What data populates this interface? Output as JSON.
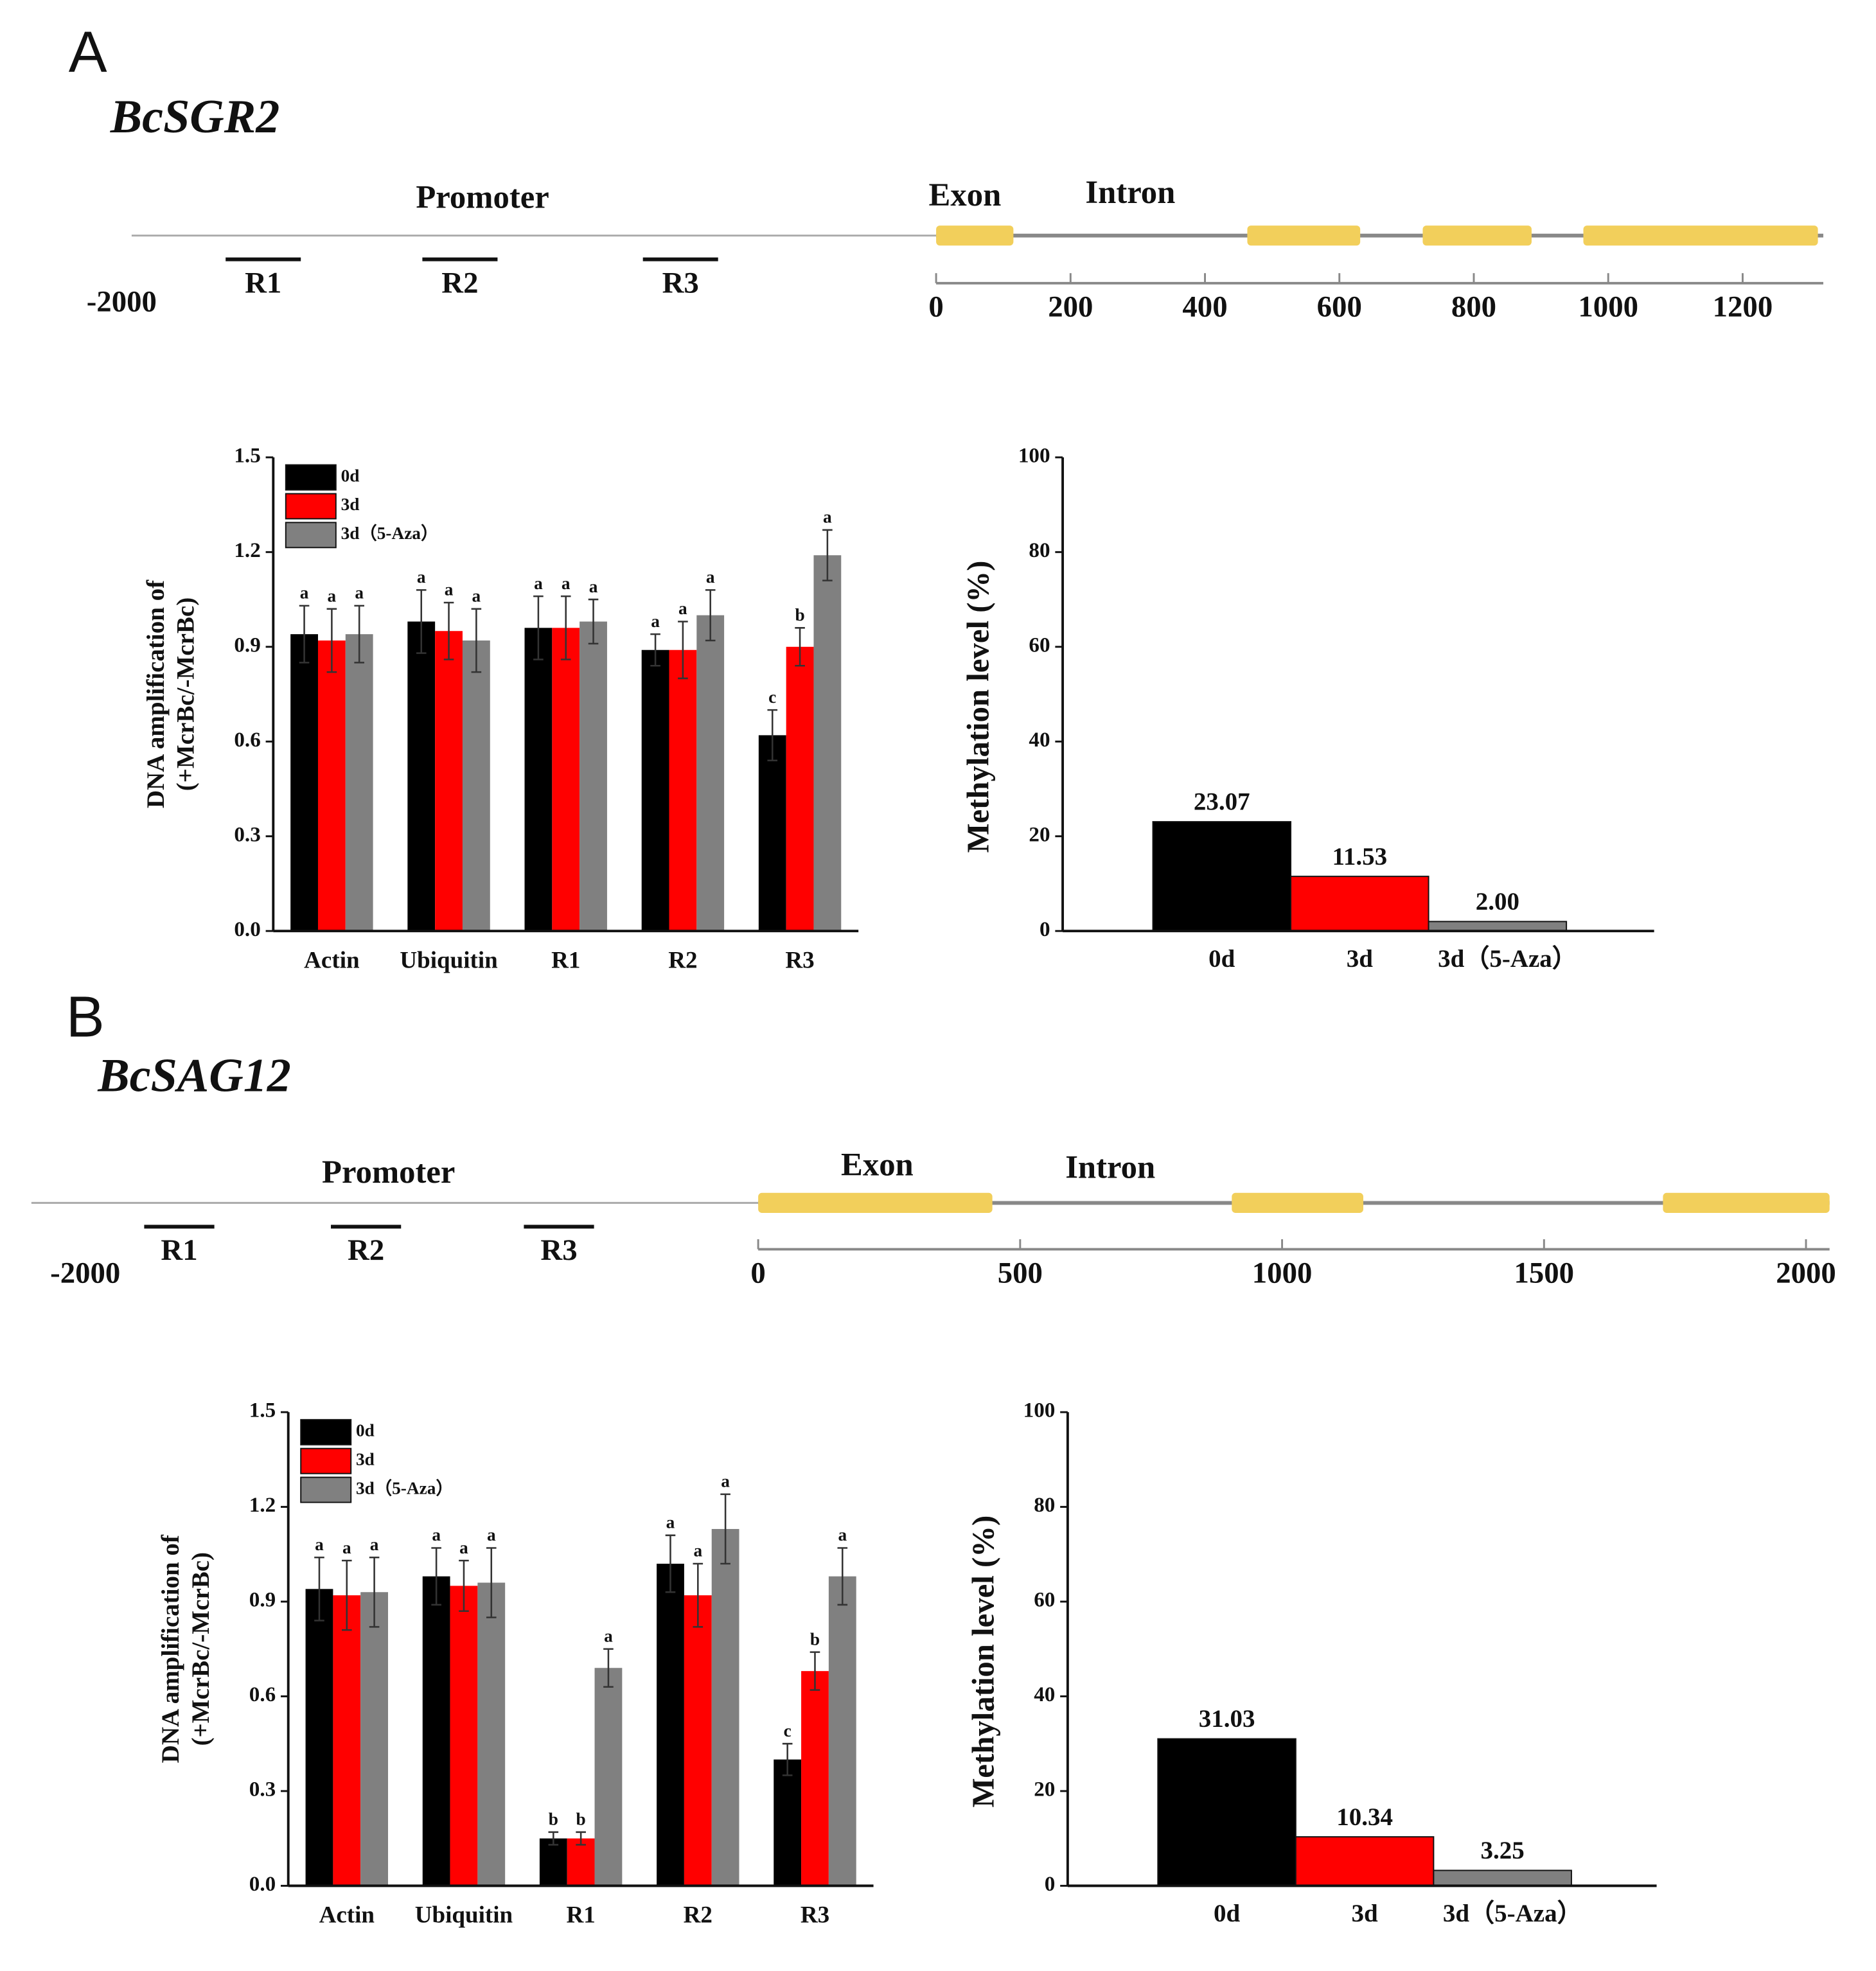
{
  "figure": {
    "panels": [
      {
        "label": "A",
        "gene": "BcSGR2",
        "promoter": "Promoter",
        "exon": "Exon",
        "intron": "Intron",
        "start": "-2000",
        "regions": [
          "R1",
          "R2",
          "R3"
        ],
        "exons": [
          [
            0,
            115
          ],
          [
            463,
            631
          ],
          [
            724,
            886
          ],
          [
            963,
            1312
          ]
        ],
        "xlim": [
          0,
          1320
        ],
        "xticks": [
          0,
          200,
          400,
          600,
          800,
          1000,
          1200
        ]
      },
      {
        "label": "B",
        "gene": "BcSAG12",
        "promoter": "Promoter",
        "exon": "Exon",
        "intron": "Intron",
        "start": "-2000",
        "regions": [
          "R1",
          "R2",
          "R3"
        ],
        "exons": [
          [
            0,
            447
          ],
          [
            904,
            1155
          ],
          [
            1727,
            2045
          ]
        ],
        "xlim": [
          0,
          2045
        ],
        "xticks": [
          0,
          500,
          1000,
          1500,
          2000
        ]
      }
    ]
  },
  "chart_data": [
    {
      "type": "grouped_bar",
      "ylabel": [
        "DNA amplification of",
        "(+McrBc/-McrBc)"
      ],
      "categories": [
        "Actin",
        "Ubiquitin",
        "R1",
        "R2",
        "R3"
      ],
      "ylim": [
        0,
        1.5
      ],
      "yticks": [
        {
          "value": 0,
          "label": "0.0"
        },
        0.3,
        0.6,
        0.9,
        1.2,
        1.5
      ],
      "legend": "upper left",
      "series": [
        {
          "name": "0d",
          "color": "#000000",
          "values": [
            0.94,
            0.98,
            0.96,
            0.89,
            0.62
          ],
          "errors": [
            0.09,
            0.1,
            0.1,
            0.05,
            0.08
          ],
          "letters": [
            "a",
            "a",
            "a",
            "a",
            "c"
          ]
        },
        {
          "name": "3d",
          "color": "#ff0000",
          "values": [
            0.92,
            0.95,
            0.96,
            0.89,
            0.9
          ],
          "errors": [
            0.1,
            0.09,
            0.1,
            0.09,
            0.06
          ],
          "letters": [
            "a",
            "a",
            "a",
            "a",
            "b"
          ]
        },
        {
          "name": "3d（5-Aza）",
          "color": "#808080",
          "values": [
            0.94,
            0.92,
            0.98,
            1.0,
            1.19
          ],
          "errors": [
            0.09,
            0.1,
            0.07,
            0.08,
            0.08
          ],
          "letters": [
            "a",
            "a",
            "a",
            "a",
            "a"
          ]
        }
      ]
    },
    {
      "type": "bar",
      "ylabel": "Methylation level (%)",
      "categories": [
        "0d",
        "3d",
        "3d（5-Aza）"
      ],
      "values": [
        23.07,
        11.53,
        2.0
      ],
      "value_labels": [
        "23.07",
        "11.53",
        "2.00"
      ],
      "colors": [
        "#000000",
        "#ff0000",
        "#808080"
      ],
      "ylim": [
        0,
        100
      ],
      "yticks": [
        0,
        20,
        40,
        60,
        80,
        100
      ]
    },
    {
      "type": "grouped_bar",
      "ylabel": [
        "DNA amplification of",
        "(+McrBc/-McrBc)"
      ],
      "categories": [
        "Actin",
        "Ubiquitin",
        "R1",
        "R2",
        "R3"
      ],
      "ylim": [
        0,
        1.5
      ],
      "yticks": [
        {
          "value": 0,
          "label": "0.0"
        },
        0.3,
        0.6,
        0.9,
        1.2,
        1.5
      ],
      "legend": "upper left",
      "series": [
        {
          "name": "0d",
          "color": "#000000",
          "values": [
            0.94,
            0.98,
            0.15,
            1.02,
            0.4
          ],
          "errors": [
            0.1,
            0.09,
            0.02,
            0.09,
            0.05
          ],
          "letters": [
            "a",
            "a",
            "b",
            "a",
            "c"
          ]
        },
        {
          "name": "3d",
          "color": "#ff0000",
          "values": [
            0.92,
            0.95,
            0.15,
            0.92,
            0.68
          ],
          "errors": [
            0.11,
            0.08,
            0.02,
            0.1,
            0.06
          ],
          "letters": [
            "a",
            "a",
            "b",
            "a",
            "b"
          ]
        },
        {
          "name": "3d（5-Aza）",
          "color": "#808080",
          "values": [
            0.93,
            0.96,
            0.69,
            1.13,
            0.98
          ],
          "errors": [
            0.11,
            0.11,
            0.06,
            0.11,
            0.09
          ],
          "letters": [
            "a",
            "a",
            "a",
            "a",
            "a"
          ]
        }
      ]
    },
    {
      "type": "bar",
      "ylabel": "Methylation level (%)",
      "categories": [
        "0d",
        "3d",
        "3d（5-Aza）"
      ],
      "values": [
        31.03,
        10.34,
        3.25
      ],
      "value_labels": [
        "31.03",
        "10.34",
        "3.25"
      ],
      "colors": [
        "#000000",
        "#ff0000",
        "#808080"
      ],
      "ylim": [
        0,
        100
      ],
      "yticks": [
        0,
        20,
        40,
        60,
        80,
        100
      ]
    }
  ]
}
